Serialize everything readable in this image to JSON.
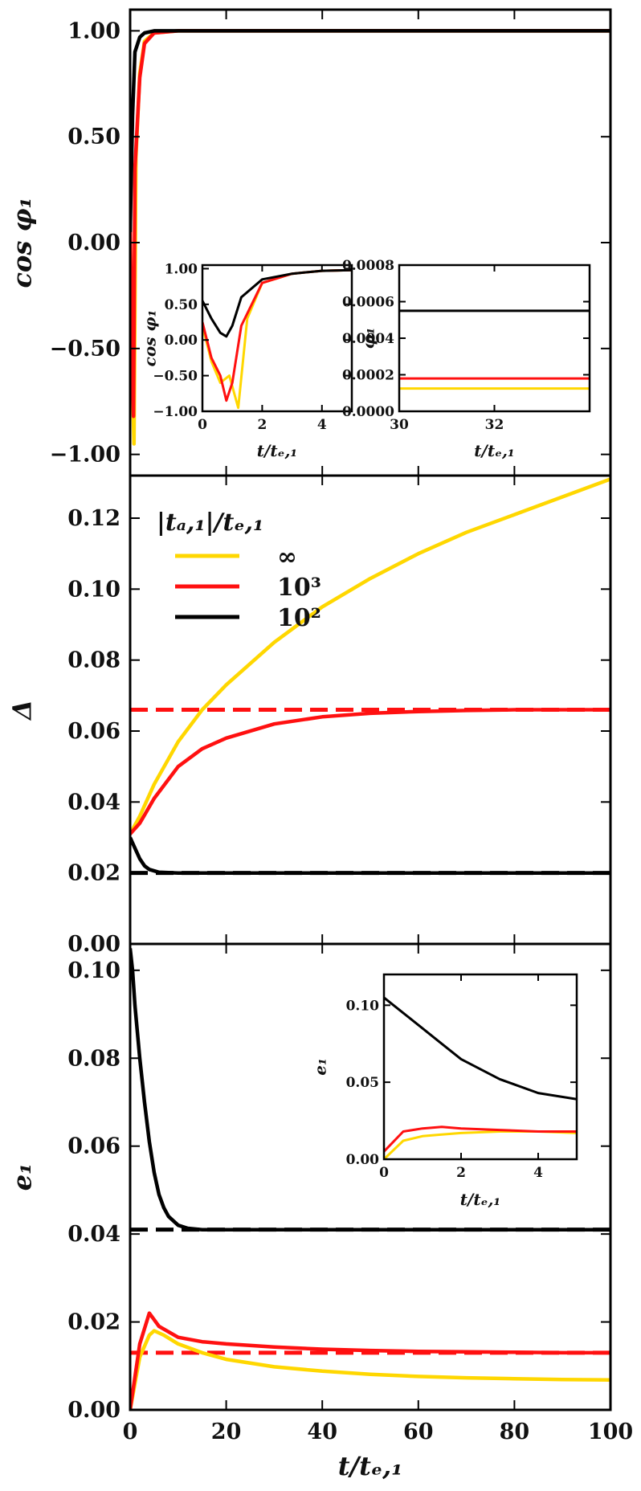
{
  "chart_data": [
    {
      "type": "line",
      "id": "top",
      "ylabel": "cos φ₁",
      "xlim": [
        0,
        100
      ],
      "ylim": [
        -1.1,
        1.1
      ],
      "yticks": [
        "1.00",
        "0.50",
        "0.00",
        "−0.50",
        "−1.00"
      ],
      "ytick_values": [
        1.0,
        0.5,
        0.0,
        -0.5,
        -1.0
      ],
      "xticks": [
        "0",
        "20",
        "40",
        "60",
        "80",
        "100"
      ],
      "xtick_values": [
        0,
        20,
        40,
        60,
        80,
        100
      ],
      "series": [
        {
          "color": "#ffd700",
          "x": [
            0,
            0.3,
            0.8,
            1.2,
            2,
            3,
            5,
            10,
            100
          ],
          "y": [
            0.1,
            -0.5,
            -0.95,
            0.4,
            0.8,
            0.95,
            0.99,
            1.0,
            1.0
          ]
        },
        {
          "color": "#ff1010",
          "x": [
            0,
            0.3,
            0.7,
            1.0,
            2,
            3,
            5,
            10,
            100
          ],
          "y": [
            0.1,
            -0.4,
            -0.82,
            0.35,
            0.78,
            0.94,
            0.99,
            1.0,
            1.0
          ]
        },
        {
          "color": "#000000",
          "x": [
            0,
            0.5,
            1,
            2,
            3,
            5,
            100
          ],
          "y": [
            0.05,
            0.6,
            0.9,
            0.97,
            0.99,
            1.0,
            1.0
          ]
        }
      ]
    },
    {
      "type": "line",
      "id": "middle",
      "ylabel": "Δ",
      "xlim": [
        0,
        100
      ],
      "ylim": [
        0,
        0.132
      ],
      "yticks": [
        "0.12",
        "0.10",
        "0.08",
        "0.06",
        "0.04",
        "0.02",
        "0.00"
      ],
      "ytick_values": [
        0.12,
        0.1,
        0.08,
        0.06,
        0.04,
        0.02,
        0.0
      ],
      "xticks": [
        "0",
        "20",
        "40",
        "60",
        "80",
        "100"
      ],
      "xtick_values": [
        0,
        20,
        40,
        60,
        80,
        100
      ],
      "legend_title": "|tₐ,₁|/tₑ,₁",
      "legend_labels": [
        "∞",
        "10³",
        "10²"
      ],
      "legend_placement": "top-left",
      "series": [
        {
          "name": "∞",
          "color": "#ffd700",
          "x": [
            0,
            2,
            5,
            10,
            15,
            20,
            30,
            40,
            50,
            60,
            70,
            80,
            90,
            100
          ],
          "y": [
            0.031,
            0.036,
            0.045,
            0.057,
            0.066,
            0.073,
            0.085,
            0.095,
            0.103,
            0.11,
            0.116,
            0.121,
            0.126,
            0.131
          ]
        },
        {
          "name": "10³",
          "color": "#ff1010",
          "x": [
            0,
            2,
            5,
            10,
            15,
            20,
            30,
            40,
            50,
            60,
            70,
            80,
            90,
            100
          ],
          "y": [
            0.031,
            0.034,
            0.041,
            0.05,
            0.055,
            0.058,
            0.062,
            0.064,
            0.065,
            0.0655,
            0.0658,
            0.066,
            0.066,
            0.066
          ]
        },
        {
          "name": "10²",
          "color": "#000000",
          "x": [
            0,
            1,
            2,
            3,
            4,
            6,
            10,
            100
          ],
          "y": [
            0.03,
            0.027,
            0.024,
            0.022,
            0.021,
            0.0202,
            0.02,
            0.02
          ]
        }
      ],
      "dashed_lines": [
        {
          "color": "#ff1010",
          "y": 0.066
        },
        {
          "color": "#000000",
          "y": 0.02
        }
      ]
    },
    {
      "type": "line",
      "id": "bottom",
      "ylabel": "e₁",
      "xlabel": "t/tₑ,₁",
      "xlim": [
        0,
        100
      ],
      "ylim": [
        0,
        0.106
      ],
      "yticks": [
        "0.10",
        "0.08",
        "0.06",
        "0.04",
        "0.02",
        "0.00"
      ],
      "ytick_values": [
        0.1,
        0.08,
        0.06,
        0.04,
        0.02,
        0.0
      ],
      "xticks": [
        "0",
        "20",
        "40",
        "60",
        "80",
        "100"
      ],
      "xtick_values": [
        0,
        20,
        40,
        60,
        80,
        100
      ],
      "series": [
        {
          "color": "#ffd700",
          "x": [
            0,
            2,
            4,
            5,
            7,
            10,
            15,
            20,
            30,
            40,
            50,
            60,
            70,
            80,
            90,
            100
          ],
          "y": [
            0.0,
            0.012,
            0.017,
            0.018,
            0.017,
            0.015,
            0.013,
            0.0115,
            0.0098,
            0.0088,
            0.0081,
            0.0076,
            0.0073,
            0.0071,
            0.0069,
            0.0068
          ]
        },
        {
          "color": "#ff1010",
          "x": [
            0,
            2,
            4,
            6,
            10,
            15,
            20,
            30,
            40,
            50,
            60,
            70,
            80,
            90,
            100
          ],
          "y": [
            0.0,
            0.015,
            0.022,
            0.019,
            0.0165,
            0.0155,
            0.015,
            0.0143,
            0.0138,
            0.0135,
            0.0133,
            0.0132,
            0.0131,
            0.013,
            0.013
          ]
        },
        {
          "color": "#000000",
          "x": [
            0,
            0.5,
            1,
            2,
            3,
            4,
            5,
            6,
            7,
            8,
            10,
            12,
            15,
            20,
            100
          ],
          "y": [
            0.105,
            0.1,
            0.092,
            0.08,
            0.07,
            0.061,
            0.054,
            0.049,
            0.046,
            0.044,
            0.042,
            0.0413,
            0.041,
            0.041,
            0.041
          ]
        }
      ],
      "dashed_lines": [
        {
          "color": "#ff1010",
          "y": 0.013
        },
        {
          "color": "#000000",
          "y": 0.041
        }
      ]
    },
    {
      "type": "line",
      "id": "inset-cos",
      "ylabel": "cos φ₁",
      "xlabel": "t/tₑ,₁",
      "xlim": [
        0,
        5
      ],
      "ylim": [
        -1.0,
        1.05
      ],
      "yticks": [
        "1.00",
        "0.50",
        "0.00",
        "−0.50",
        "−1.00"
      ],
      "ytick_values": [
        1.0,
        0.5,
        0.0,
        -0.5,
        -1.0
      ],
      "xticks": [
        "0",
        "2",
        "4"
      ],
      "xtick_values": [
        0,
        2,
        4
      ],
      "series": [
        {
          "color": "#ffd700",
          "x": [
            0,
            0.3,
            0.6,
            0.9,
            1.2,
            1.5,
            2,
            3,
            4,
            5
          ],
          "y": [
            0.2,
            -0.3,
            -0.6,
            -0.5,
            -0.95,
            0.3,
            0.8,
            0.93,
            0.97,
            0.98
          ]
        },
        {
          "color": "#ff1010",
          "x": [
            0,
            0.3,
            0.6,
            0.8,
            1.0,
            1.3,
            2,
            3,
            4,
            5
          ],
          "y": [
            0.25,
            -0.25,
            -0.5,
            -0.85,
            -0.6,
            0.2,
            0.8,
            0.93,
            0.97,
            0.98
          ]
        },
        {
          "color": "#000000",
          "x": [
            0,
            0.3,
            0.6,
            0.8,
            1.0,
            1.3,
            2,
            3,
            4,
            5
          ],
          "y": [
            0.55,
            0.3,
            0.1,
            0.05,
            0.2,
            0.6,
            0.85,
            0.93,
            0.97,
            0.98
          ]
        }
      ]
    },
    {
      "type": "line",
      "id": "inset-phi",
      "ylabel": "φ₁",
      "xlabel": "t/tₑ,₁",
      "xlim": [
        30,
        34
      ],
      "ylim": [
        0,
        0.0008
      ],
      "yticks": [
        "0.0008",
        "0.0006",
        "0.0004",
        "0.0002",
        "0.0000"
      ],
      "ytick_values": [
        0.0008,
        0.0006,
        0.0004,
        0.0002,
        0.0
      ],
      "xticks": [
        "30",
        "32"
      ],
      "xtick_values": [
        30,
        32
      ],
      "series": [
        {
          "color": "#ffd700",
          "x": [
            30,
            34
          ],
          "y": [
            0.000125,
            0.000125
          ]
        },
        {
          "color": "#ff1010",
          "x": [
            30,
            34
          ],
          "y": [
            0.00018,
            0.00018
          ]
        },
        {
          "color": "#000000",
          "x": [
            30,
            34
          ],
          "y": [
            0.00055,
            0.00055
          ]
        }
      ]
    },
    {
      "type": "line",
      "id": "inset-e",
      "ylabel": "e₁",
      "xlabel": "t/tₑ,₁",
      "xlim": [
        0,
        5
      ],
      "ylim": [
        0,
        0.12
      ],
      "yticks": [
        "0.10",
        "0.05",
        "0.00"
      ],
      "ytick_values": [
        0.1,
        0.05,
        0.0
      ],
      "xticks": [
        "0",
        "2",
        "4"
      ],
      "xtick_values": [
        0,
        2,
        4
      ],
      "series": [
        {
          "color": "#ffd700",
          "x": [
            0,
            0.5,
            1,
            1.5,
            2,
            3,
            4,
            5
          ],
          "y": [
            0.0,
            0.012,
            0.015,
            0.016,
            0.017,
            0.018,
            0.018,
            0.017
          ]
        },
        {
          "color": "#ff1010",
          "x": [
            0,
            0.5,
            1,
            1.5,
            2,
            3,
            4,
            5
          ],
          "y": [
            0.005,
            0.018,
            0.02,
            0.021,
            0.02,
            0.019,
            0.018,
            0.018
          ]
        },
        {
          "color": "#000000",
          "x": [
            0,
            0.5,
            1,
            1.5,
            2,
            3,
            4,
            5
          ],
          "y": [
            0.105,
            0.095,
            0.085,
            0.075,
            0.065,
            0.052,
            0.043,
            0.039
          ]
        }
      ]
    }
  ]
}
